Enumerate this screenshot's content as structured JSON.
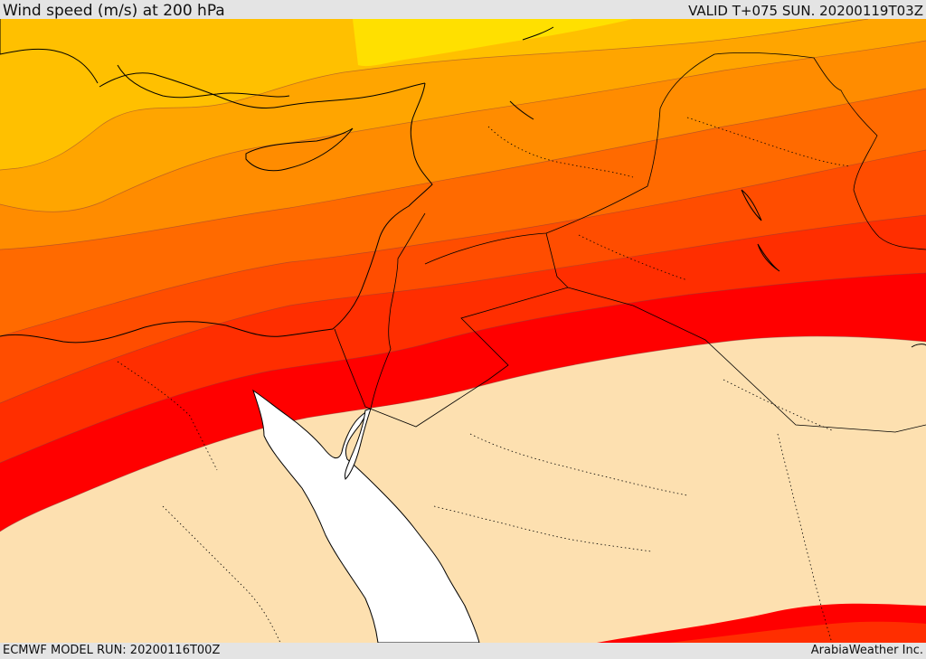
{
  "header": {
    "title": "Wind speed (m/s) at 200 hPa",
    "valid_time": "VALID T+075 SUN. 20200119T03Z"
  },
  "footer": {
    "model_run": "ECMWF MODEL RUN: 20200116T00Z",
    "credit": "ArabiaWeather Inc."
  },
  "map": {
    "variable": "wind speed",
    "level": "200 hPa",
    "bands": [
      {
        "name": "band-1",
        "color": "#ffe000"
      },
      {
        "name": "band-2",
        "color": "#ffc000"
      },
      {
        "name": "band-3",
        "color": "#ffa500"
      },
      {
        "name": "band-4",
        "color": "#ff8c00"
      },
      {
        "name": "band-5",
        "color": "#ff6a00"
      },
      {
        "name": "band-6",
        "color": "#ff4d00"
      },
      {
        "name": "band-7",
        "color": "#ff2e00"
      },
      {
        "name": "band-8",
        "color": "#ff0000"
      }
    ],
    "background_color": "#fde0b0",
    "water_color": "#ffffff"
  }
}
